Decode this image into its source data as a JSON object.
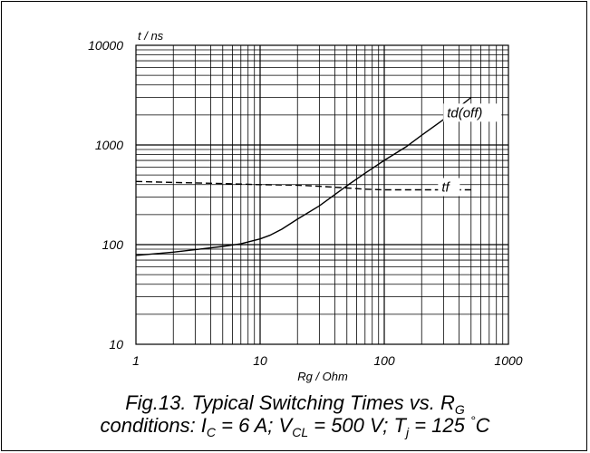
{
  "chart_data": {
    "type": "line",
    "x_scale": "log",
    "y_scale": "log",
    "xlim": [
      1,
      1000
    ],
    "ylim": [
      10,
      10000
    ],
    "xlabel": "Rg / Ohm",
    "ylabel": "t / ns",
    "x_ticks": [
      "1",
      "10",
      "100",
      "1000"
    ],
    "y_ticks": [
      "10",
      "100",
      "1000",
      "10000"
    ],
    "grid": true,
    "series": [
      {
        "name": "td(off)",
        "style": "solid",
        "color": "#000000",
        "x": [
          1,
          2,
          3,
          5,
          7,
          10,
          12,
          15,
          20,
          30,
          50,
          70,
          100,
          150,
          200,
          300,
          500
        ],
        "y": [
          78,
          84,
          89,
          96,
          102,
          114,
          124,
          143,
          180,
          245,
          390,
          520,
          700,
          960,
          1250,
          1800,
          3000
        ]
      },
      {
        "name": "tf",
        "style": "dashed",
        "color": "#000000",
        "x": [
          1,
          2,
          5,
          10,
          20,
          30,
          50,
          70,
          100,
          200,
          500
        ],
        "y": [
          430,
          420,
          410,
          400,
          395,
          385,
          370,
          360,
          355,
          355,
          355
        ]
      }
    ]
  },
  "caption": {
    "line1_prefix": "Fig.13.   Typical Switching Times vs. R",
    "line1_sub": "G",
    "line2_a": "conditions: I",
    "line2_a_sub": "C",
    "line2_b": " = 6 A; V",
    "line2_b_sub": "CL",
    "line2_c": " = 500 V; T",
    "line2_c_sub": "j",
    "line2_d": " = 125 ",
    "line2_d_sup": "°",
    "line2_e": "C"
  }
}
